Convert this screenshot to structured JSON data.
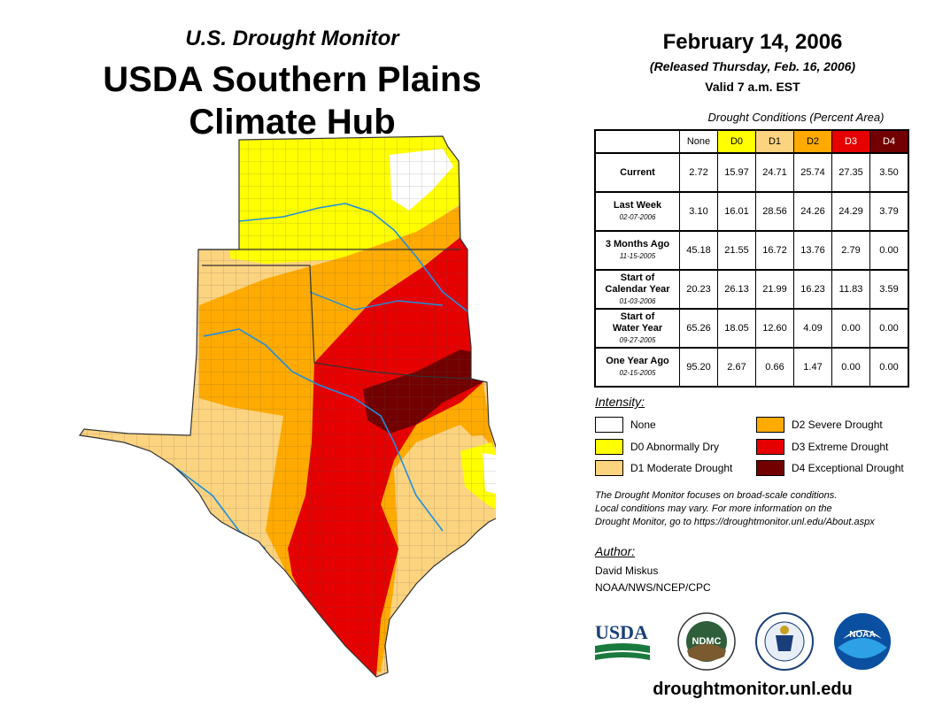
{
  "header": {
    "subtitle": "U.S. Drought Monitor",
    "title_line1": "USDA Southern Plains",
    "title_line2": "Climate Hub"
  },
  "info": {
    "date": "February 14, 2006",
    "released": "(Released Thursday, Feb. 16, 2006)",
    "valid": "Valid 7 a.m. EST"
  },
  "table": {
    "caption": "Drought Conditions (Percent Area)",
    "columns": [
      "None",
      "D0",
      "D1",
      "D2",
      "D3",
      "D4"
    ],
    "rows": [
      {
        "label": "Current",
        "label2": "",
        "date": "",
        "values": [
          "2.72",
          "15.97",
          "24.71",
          "25.74",
          "27.35",
          "3.50"
        ]
      },
      {
        "label": "Last Week",
        "label2": "",
        "date": "02-07-2006",
        "values": [
          "3.10",
          "16.01",
          "28.56",
          "24.26",
          "24.29",
          "3.79"
        ]
      },
      {
        "label": "3 Months Ago",
        "label2": "",
        "date": "11-15-2005",
        "values": [
          "45.18",
          "21.55",
          "16.72",
          "13.76",
          "2.79",
          "0.00"
        ]
      },
      {
        "label": "Start of",
        "label2": "Calendar Year",
        "date": "01-03-2006",
        "values": [
          "20.23",
          "26.13",
          "21.99",
          "16.23",
          "11.83",
          "3.59"
        ]
      },
      {
        "label": "Start of",
        "label2": "Water Year",
        "date": "09-27-2005",
        "values": [
          "65.26",
          "18.05",
          "12.60",
          "4.09",
          "0.00",
          "0.00"
        ]
      },
      {
        "label": "One Year Ago",
        "label2": "",
        "date": "02-15-2005",
        "values": [
          "95.20",
          "2.67",
          "0.66",
          "1.47",
          "0.00",
          "0.00"
        ]
      }
    ]
  },
  "legend": {
    "title": "Intensity:",
    "items": [
      {
        "label": "None",
        "color": "#ffffff"
      },
      {
        "label": "D0 Abnormally Dry",
        "color": "#ffff00"
      },
      {
        "label": "D1 Moderate Drought",
        "color": "#fcd37f"
      },
      {
        "label": "D2 Severe Drought",
        "color": "#ffaa00"
      },
      {
        "label": "D3 Extreme Drought",
        "color": "#e60000"
      },
      {
        "label": "D4 Exceptional Drought",
        "color": "#730000"
      }
    ]
  },
  "note": {
    "line1": "The Drought Monitor focuses on broad-scale conditions.",
    "line2": "Local conditions may vary. For more information on the",
    "line3": "Drought Monitor, go to https://droughtmonitor.unl.edu/About.aspx"
  },
  "author": {
    "title": "Author:",
    "name": "David Miskus",
    "org": "NOAA/NWS/NCEP/CPC"
  },
  "logos": {
    "usda": "USDA",
    "ndmc": "NDMC",
    "noaa": "NOAA"
  },
  "url": "droughtmonitor.unl.edu"
}
